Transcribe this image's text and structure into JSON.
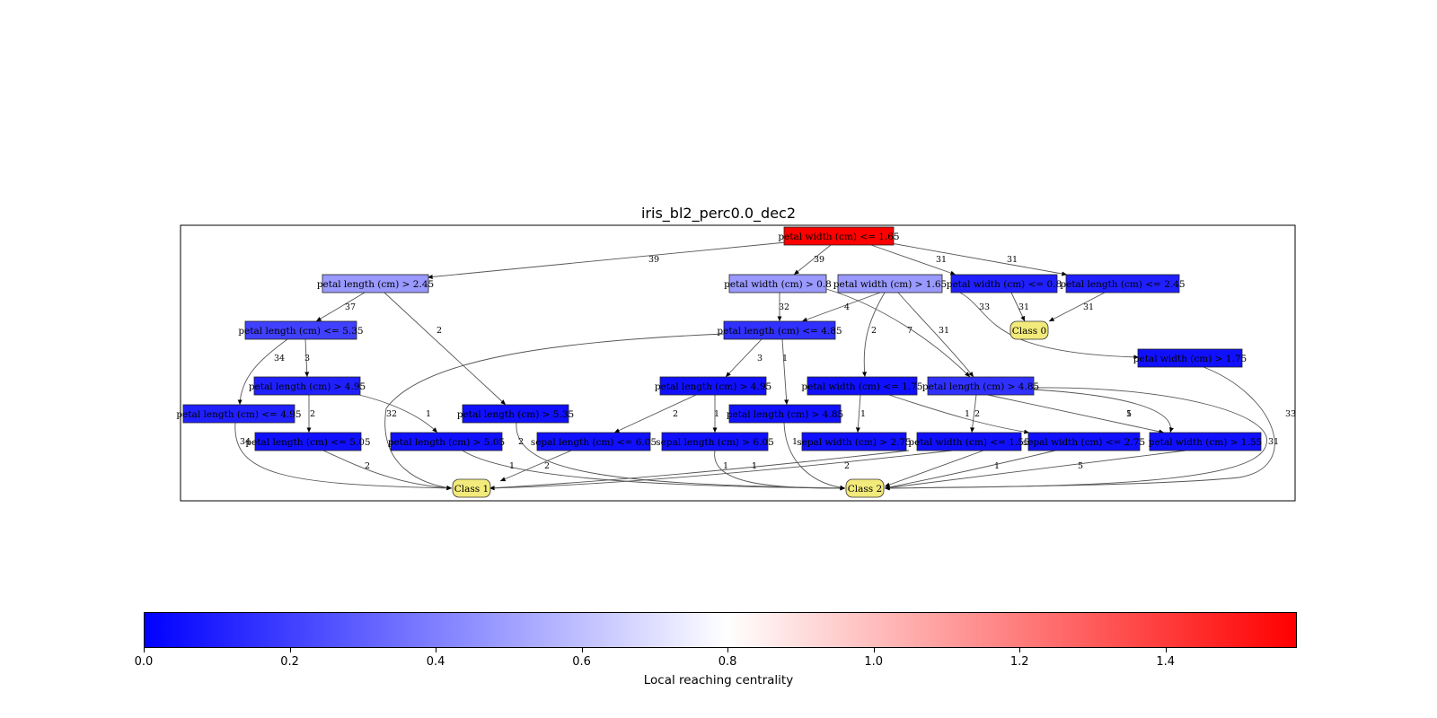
{
  "figure": {
    "title": "iris_bl2_perc0.0_dec2",
    "colorbar": {
      "label": "Local reaching centrality",
      "ticks": [
        "0.0",
        "0.2",
        "0.4",
        "0.6",
        "0.8",
        "1.0",
        "1.2",
        "1.4"
      ],
      "tick_values": [
        0.0,
        0.2,
        0.4,
        0.6,
        0.8,
        1.0,
        1.2,
        1.4
      ],
      "min": 0.0,
      "max": 1.58,
      "center": 0.8,
      "colors": {
        "low": "#0000ff",
        "mid": "#ffffff",
        "high": "#ff0000"
      }
    }
  },
  "diagram": {
    "nodes": [
      {
        "id": "root",
        "label": "petal width (cm) <= 1.65",
        "centrality": 1.58
      },
      {
        "id": "pl_gt_245",
        "label": "petal length (cm) > 2.45",
        "centrality": 0.48
      },
      {
        "id": "pw_gt_08",
        "label": "petal width (cm) > 0.8",
        "centrality": 0.48
      },
      {
        "id": "pw_gt_165",
        "label": "petal width (cm) > 1.65",
        "centrality": 0.48
      },
      {
        "id": "pw_le_08",
        "label": "petal width (cm) <= 0.8",
        "centrality": 0.1
      },
      {
        "id": "pl_le_245",
        "label": "petal length (cm) <= 2.45",
        "centrality": 0.1
      },
      {
        "id": "pl_le_535",
        "label": "petal length (cm) <= 5.35",
        "centrality": 0.2
      },
      {
        "id": "pl_le_485",
        "label": "petal length (cm) <= 4.85",
        "centrality": 0.15
      },
      {
        "id": "class0",
        "label": "Class 0",
        "terminal": true
      },
      {
        "id": "pw_gt_175",
        "label": "petal width (cm) > 1.75",
        "centrality": 0.05
      },
      {
        "id": "pl_gt_495_a",
        "label": "petal length (cm) > 4.95",
        "centrality": 0.1
      },
      {
        "id": "pl_gt_495_b",
        "label": "petal length (cm) > 4.95",
        "centrality": 0.05
      },
      {
        "id": "pw_le_175",
        "label": "petal width (cm) <= 1.75",
        "centrality": 0.05
      },
      {
        "id": "pl_gt_485",
        "label": "petal length (cm) > 4.85",
        "centrality": 0.15
      },
      {
        "id": "pl_le_495",
        "label": "petal length (cm) <= 4.95",
        "centrality": 0.1
      },
      {
        "id": "pl_gt_535",
        "label": "petal length (cm) > 5.35",
        "centrality": 0.05
      },
      {
        "id": "pl_gt_485_b",
        "label": "petal length (cm) > 4.85",
        "centrality": 0.05
      },
      {
        "id": "pl_le_505",
        "label": "petal length (cm) <= 5.05",
        "centrality": 0.05
      },
      {
        "id": "pl_gt_505",
        "label": "petal length (cm) > 5.05",
        "centrality": 0.05
      },
      {
        "id": "sl_le_605",
        "label": "sepal length (cm) <= 6.05",
        "centrality": 0.05
      },
      {
        "id": "sl_gt_605",
        "label": "sepal length (cm) > 6.05",
        "centrality": 0.05
      },
      {
        "id": "sw_gt_275",
        "label": "sepal width (cm) > 2.75",
        "centrality": 0.05
      },
      {
        "id": "pw_le_155",
        "label": "petal width (cm) <= 1.55",
        "centrality": 0.05
      },
      {
        "id": "sw_le_275",
        "label": "sepal width (cm) <= 2.75",
        "centrality": 0.05
      },
      {
        "id": "pw_gt_155",
        "label": "petal width (cm) > 1.55",
        "centrality": 0.05
      },
      {
        "id": "class1",
        "label": "Class 1",
        "terminal": true
      },
      {
        "id": "class2",
        "label": "Class 2",
        "terminal": true
      }
    ],
    "edges": [
      {
        "from": "root",
        "to": "pl_gt_245",
        "label": "39"
      },
      {
        "from": "root",
        "to": "pw_gt_08",
        "label": "39"
      },
      {
        "from": "root",
        "to": "pw_le_08",
        "label": "31"
      },
      {
        "from": "root",
        "to": "pl_le_245",
        "label": "31"
      },
      {
        "from": "pl_gt_245",
        "to": "pl_le_535",
        "label": "37"
      },
      {
        "from": "pl_gt_245",
        "to": "pl_gt_535",
        "label": "2"
      },
      {
        "from": "pw_gt_08",
        "to": "pl_le_485",
        "label": "32"
      },
      {
        "from": "pw_gt_08",
        "to": "pl_gt_485",
        "label": "7"
      },
      {
        "from": "pw_gt_165",
        "to": "pl_le_485",
        "label": "4"
      },
      {
        "from": "pw_gt_165",
        "to": "pw_le_175",
        "label": "2"
      },
      {
        "from": "pw_gt_165",
        "to": "pl_gt_485",
        "label": "31"
      },
      {
        "from": "pw_gt_165",
        "to": "pw_gt_175",
        "label": "33"
      },
      {
        "from": "pw_le_08",
        "to": "class0",
        "label": "31"
      },
      {
        "from": "pl_le_245",
        "to": "class0",
        "label": "31"
      },
      {
        "from": "pl_le_535",
        "to": "pl_le_495",
        "label": "34"
      },
      {
        "from": "pl_le_535",
        "to": "pl_gt_495_a",
        "label": "3"
      },
      {
        "from": "pl_gt_495_a",
        "to": "pl_le_505",
        "label": "2"
      },
      {
        "from": "pl_gt_495_a",
        "to": "pl_gt_505",
        "label": "1"
      },
      {
        "from": "pl_le_495",
        "to": "class1",
        "label": "34"
      },
      {
        "from": "pl_le_505",
        "to": "class1",
        "label": "2"
      },
      {
        "from": "pl_gt_505",
        "to": "class2",
        "label": "1"
      },
      {
        "from": "pl_gt_535",
        "to": "class2",
        "label": "2"
      },
      {
        "from": "pl_le_485",
        "to": "class1",
        "label": "32"
      },
      {
        "from": "pl_le_485",
        "to": "pl_gt_495_b",
        "label": "3"
      },
      {
        "from": "pl_le_485",
        "to": "pl_gt_485_b",
        "label": "1"
      },
      {
        "from": "pl_gt_495_b",
        "to": "sl_le_605",
        "label": "2"
      },
      {
        "from": "pl_gt_495_b",
        "to": "sl_gt_605",
        "label": "1"
      },
      {
        "from": "sl_le_605",
        "to": "class1",
        "label": "2"
      },
      {
        "from": "sl_gt_605",
        "to": "class2",
        "label": "1"
      },
      {
        "from": "pl_gt_485_b",
        "to": "class2",
        "label": "1"
      },
      {
        "from": "pw_le_175",
        "to": "sw_gt_275",
        "label": "1"
      },
      {
        "from": "pw_le_175",
        "to": "sw_le_275",
        "label": "1"
      },
      {
        "from": "sw_gt_275",
        "to": "class1",
        "label": "1"
      },
      {
        "from": "sw_le_275",
        "to": "class2",
        "label": "2"
      },
      {
        "from": "pl_gt_485",
        "to": "pw_le_155",
        "label": "1"
      },
      {
        "from": "pl_gt_485",
        "to": "pw_gt_155",
        "label": "5"
      },
      {
        "from": "pl_gt_485",
        "to": "class2",
        "label": "31"
      },
      {
        "from": "pl_gt_485",
        "to": "pw_le_155",
        "label": "2"
      },
      {
        "from": "pw_le_155",
        "to": "class1",
        "label": "1"
      },
      {
        "from": "pw_le_155",
        "to": "class2",
        "label": "1"
      },
      {
        "from": "pw_gt_155",
        "to": "class2",
        "label": "5"
      },
      {
        "from": "pw_gt_175",
        "to": "class2",
        "label": "33"
      }
    ]
  }
}
